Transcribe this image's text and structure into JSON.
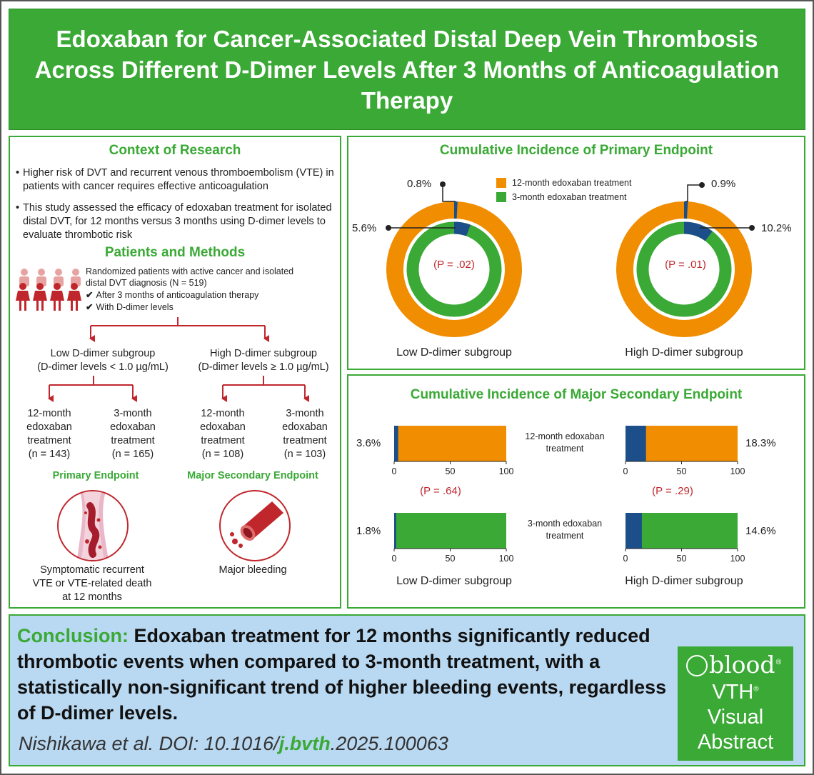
{
  "title": "Edoxaban for Cancer-Associated Distal Deep Vein Thrombosis Across Different D-Dimer Levels After 3 Months of Anticoagulation Therapy",
  "colors": {
    "green": "#3aa935",
    "orange": "#f18d00",
    "navy": "#1c4f8a",
    "red": "#c0272d",
    "light_blue": "#b9d8f1"
  },
  "context": {
    "heading": "Context of Research",
    "bullets": [
      "Higher risk of DVT and recurrent venous thromboembolism (VTE) in patients with cancer requires effective anticoagulation",
      "This study assessed the efficacy of edoxaban treatment for isolated distal DVT, for 12 months versus 3 months using D-dimer levels to evaluate thrombotic risk"
    ]
  },
  "methods": {
    "heading": "Patients and Methods",
    "population_line1": "Randomized patients with active cancer and isolated",
    "population_line2": "distal DVT diagnosis (N = 519)",
    "check1": "After 3 months of anticoagulation therapy",
    "check2": "With D-dimer levels",
    "low_group_line1": "Low D-dimer subgroup",
    "low_group_line2": "(D-dimer levels < 1.0 µg/mL)",
    "high_group_line1": "High D-dimer subgroup",
    "high_group_line2": "(D-dimer levels ≥ 1.0 µg/mL)",
    "arms": [
      {
        "l1": "12-month",
        "l2": "edoxaban",
        "l3": "treatment",
        "n": "(n = 143)"
      },
      {
        "l1": "3-month",
        "l2": "edoxaban",
        "l3": "treatment",
        "n": "(n = 165)"
      },
      {
        "l1": "12-month",
        "l2": "edoxaban",
        "l3": "treatment",
        "n": "(n = 108)"
      },
      {
        "l1": "3-month",
        "l2": "edoxaban",
        "l3": "treatment",
        "n": "(n = 103)"
      }
    ],
    "primary_endpoint_title": "Primary Endpoint",
    "secondary_endpoint_title": "Major Secondary Endpoint",
    "primary_endpoint_desc": [
      "Symptomatic recurrent",
      "VTE or VTE-related death",
      "at 12 months"
    ],
    "secondary_endpoint_desc": "Major bleeding",
    "primary_icon": "thrombosis-vein-icon",
    "secondary_icon": "bleeding-vessel-icon"
  },
  "conclusion": {
    "label": "Conclusion:",
    "text": "Edoxaban treatment for 12 months significantly reduced thrombotic events when compared to 3-month treatment, with a statistically non-significant trend of higher bleeding events, regardless of D-dimer levels.",
    "citation_pre": "Nishikawa et al. DOI: 10.1016/",
    "citation_bold": "j.bvth",
    "citation_post": ".2025.100063"
  },
  "badge": {
    "blood": "blood",
    "reg1": "®",
    "line1": "VTH",
    "reg2": "®",
    "line2": "Visual",
    "line3": "Abstract"
  },
  "chart_data": [
    {
      "type": "donut",
      "title": "Cumulative Incidence of Primary Endpoint",
      "legend": [
        {
          "name": "12-month edoxaban treatment",
          "color": "#f18d00"
        },
        {
          "name": "3-month edoxaban treatment",
          "color": "#3aa935"
        }
      ],
      "groups": [
        {
          "name": "Low D-dimer subgroup",
          "p_value": "(P = .02)",
          "outer_12_month": 0.8,
          "inner_3_month": 5.6,
          "outer_label": "0.8%",
          "inner_label": "5.6%"
        },
        {
          "name": "High D-dimer subgroup",
          "p_value": "(P = .01)",
          "outer_12_month": 0.9,
          "inner_3_month": 10.2,
          "outer_label": "0.9%",
          "inner_label": "10.2%"
        }
      ],
      "event_color": "#1c4f8a"
    },
    {
      "type": "bar",
      "orientation": "horizontal",
      "title": "Cumulative Incidence of Major Secondary Endpoint",
      "xlim": [
        0,
        100
      ],
      "ticks": [
        "0",
        "50",
        "100"
      ],
      "row_labels": [
        "12-month edoxaban treatment",
        "3-month edoxaban treatment"
      ],
      "groups": [
        {
          "name": "Low D-dimer subgroup",
          "p_value": "(P = .64)",
          "values": [
            3.6,
            1.8
          ],
          "labels": [
            "3.6%",
            "1.8%"
          ]
        },
        {
          "name": "High D-dimer subgroup",
          "p_value": "(P = .29)",
          "values": [
            18.3,
            14.6
          ],
          "labels": [
            "18.3%",
            "14.6%"
          ]
        }
      ]
    }
  ]
}
